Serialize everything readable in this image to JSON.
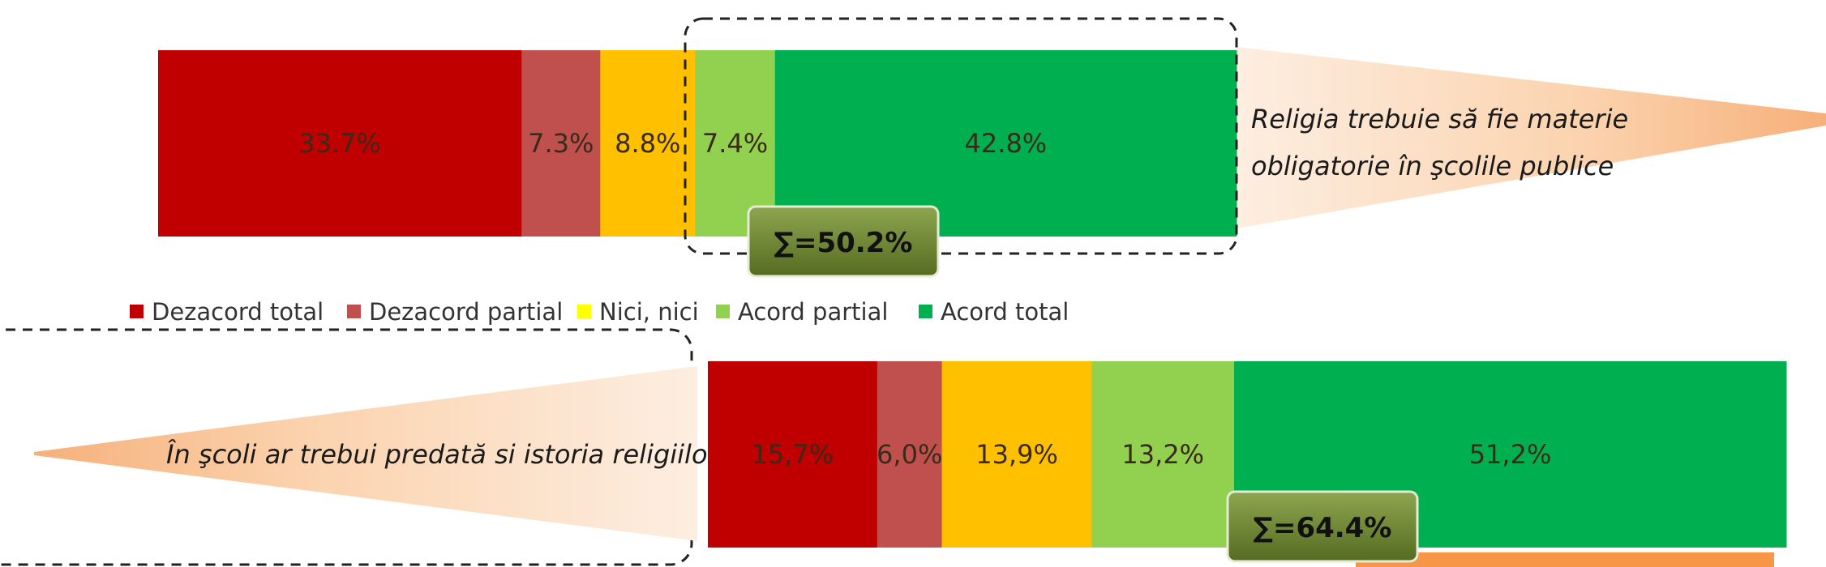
{
  "chart_data": [
    {
      "type": "bar",
      "orientation": "horizontal-stacked-100",
      "category": "Religia trebuie să fie materie obligatorie în şcolile publice",
      "category_lines": [
        "Religia trebuie să fie materie",
        "obligatorie în şcolile publice"
      ],
      "series": [
        {
          "name": "Dezacord total",
          "value": 33.7,
          "label": "33.7%"
        },
        {
          "name": "Dezacord partial",
          "value": 7.3,
          "label": "7.3%"
        },
        {
          "name": "Nici, nici",
          "value": 8.8,
          "label": "8.8%"
        },
        {
          "name": "Acord partial",
          "value": 7.4,
          "label": "7.4%"
        },
        {
          "name": "Acord total",
          "value": 42.8,
          "label": "42.8%"
        }
      ],
      "sum_label": "∑=50.2%",
      "sum_value": 50.2
    },
    {
      "type": "bar",
      "orientation": "horizontal-stacked-100",
      "category": "În şcoli ar trebui predată si istoria religiilo",
      "category_lines": [
        "În şcoli ar trebui predată si istoria religiilo"
      ],
      "series": [
        {
          "name": "Dezacord total",
          "value": 15.7,
          "label": "15,7%"
        },
        {
          "name": "Dezacord partial",
          "value": 6.0,
          "label": "6,0%"
        },
        {
          "name": "Nici, nici",
          "value": 13.9,
          "label": "13,9%"
        },
        {
          "name": "Acord partial",
          "value": 13.2,
          "label": "13,2%"
        },
        {
          "name": "Acord total",
          "value": 51.2,
          "label": "51,2%"
        }
      ],
      "sum_label": "∑=64.4%",
      "sum_value": 64.4
    }
  ],
  "legend": {
    "placement": "middle-left",
    "items": [
      {
        "name": "Dezacord total",
        "color": "#c00000"
      },
      {
        "name": "Dezacord partial",
        "color": "#c0504d"
      },
      {
        "name": "Nici, nici",
        "color": "#ffff00"
      },
      {
        "name": "Acord partial",
        "color": "#92d050"
      },
      {
        "name": "Acord total",
        "color": "#00b050"
      }
    ]
  },
  "segment_colors": [
    "#c00000",
    "#c0504d",
    "#ffc000",
    "#92d050",
    "#00b050"
  ]
}
